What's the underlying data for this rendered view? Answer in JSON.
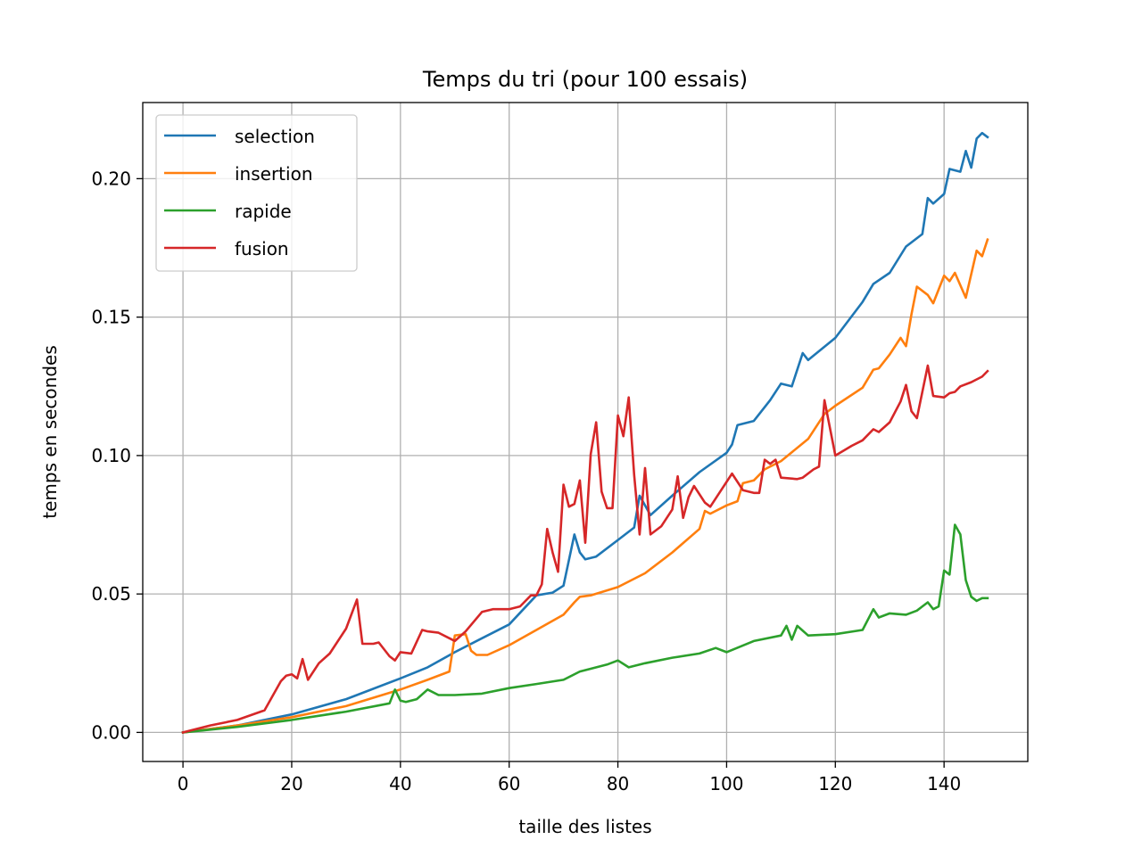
{
  "chart_data": {
    "type": "line",
    "title": "Temps du tri (pour 100 essais)",
    "xlabel": "taille des listes",
    "ylabel": "temps en secondes",
    "xlim": [
      -7.4,
      155.4
    ],
    "ylim": [
      -0.0105,
      0.2275
    ],
    "xticks": [
      0,
      20,
      40,
      60,
      80,
      100,
      120,
      140
    ],
    "xtick_labels": [
      "0",
      "20",
      "40",
      "60",
      "80",
      "100",
      "120",
      "140"
    ],
    "yticks": [
      0.0,
      0.05,
      0.1,
      0.15,
      0.2
    ],
    "ytick_labels": [
      "0.00",
      "0.05",
      "0.10",
      "0.15",
      "0.20"
    ],
    "grid": true,
    "legend_position": "top-left",
    "series": [
      {
        "name": "selection",
        "color": "#1f77b4",
        "x": [
          0,
          10,
          20,
          30,
          40,
          45,
          50,
          55,
          60,
          65,
          68,
          70,
          72,
          73,
          74,
          76,
          80,
          83,
          84,
          86,
          90,
          95,
          100,
          101,
          102,
          105,
          108,
          110,
          112,
          114,
          115,
          120,
          125,
          127,
          130,
          133,
          136,
          137,
          138,
          140,
          141,
          143,
          144,
          145,
          146,
          147,
          148
        ],
        "y": [
          0.0,
          0.0025,
          0.0065,
          0.012,
          0.0195,
          0.0235,
          0.029,
          0.034,
          0.039,
          0.0495,
          0.0505,
          0.053,
          0.0715,
          0.065,
          0.0625,
          0.0635,
          0.0695,
          0.074,
          0.0855,
          0.0785,
          0.0855,
          0.094,
          0.101,
          0.104,
          0.111,
          0.1125,
          0.12,
          0.126,
          0.125,
          0.137,
          0.1345,
          0.1425,
          0.1555,
          0.162,
          0.166,
          0.1755,
          0.18,
          0.193,
          0.191,
          0.1945,
          0.2035,
          0.2025,
          0.21,
          0.204,
          0.2145,
          0.2165,
          0.215
        ]
      },
      {
        "name": "insertion",
        "color": "#ff7f0e",
        "x": [
          0,
          10,
          20,
          30,
          40,
          45,
          49,
          50,
          52,
          53,
          54,
          56,
          60,
          65,
          70,
          72,
          73,
          75,
          80,
          85,
          90,
          95,
          96,
          97,
          100,
          102,
          103,
          105,
          107,
          110,
          115,
          118,
          120,
          125,
          127,
          128,
          130,
          132,
          133,
          134,
          135,
          137,
          138,
          140,
          141,
          142,
          144,
          146,
          147,
          148
        ],
        "y": [
          0.0,
          0.0025,
          0.0055,
          0.0095,
          0.0155,
          0.019,
          0.022,
          0.035,
          0.0355,
          0.0295,
          0.028,
          0.028,
          0.0315,
          0.037,
          0.0425,
          0.047,
          0.049,
          0.0495,
          0.0525,
          0.0575,
          0.065,
          0.0735,
          0.08,
          0.079,
          0.082,
          0.0835,
          0.09,
          0.091,
          0.095,
          0.098,
          0.106,
          0.115,
          0.118,
          0.1245,
          0.131,
          0.1315,
          0.1365,
          0.1425,
          0.1395,
          0.151,
          0.161,
          0.158,
          0.155,
          0.165,
          0.163,
          0.166,
          0.157,
          0.174,
          0.172,
          0.178
        ]
      },
      {
        "name": "rapide",
        "color": "#2ca02c",
        "x": [
          0,
          10,
          20,
          30,
          38,
          39,
          40,
          41,
          43,
          45,
          47,
          50,
          55,
          60,
          65,
          70,
          73,
          75,
          78,
          80,
          82,
          85,
          90,
          95,
          98,
          100,
          105,
          110,
          111,
          112,
          113,
          115,
          120,
          125,
          127,
          128,
          130,
          133,
          135,
          136,
          137,
          138,
          139,
          140,
          141,
          142,
          143,
          144,
          145,
          146,
          147,
          148
        ],
        "y": [
          0.0,
          0.002,
          0.0045,
          0.0075,
          0.0105,
          0.0155,
          0.0115,
          0.011,
          0.012,
          0.0155,
          0.0135,
          0.0135,
          0.014,
          0.016,
          0.0175,
          0.019,
          0.022,
          0.023,
          0.0245,
          0.026,
          0.0235,
          0.025,
          0.027,
          0.0285,
          0.0305,
          0.029,
          0.033,
          0.035,
          0.0385,
          0.0335,
          0.0385,
          0.035,
          0.0355,
          0.037,
          0.0445,
          0.0415,
          0.043,
          0.0425,
          0.044,
          0.0455,
          0.047,
          0.0445,
          0.0455,
          0.0585,
          0.057,
          0.075,
          0.0715,
          0.055,
          0.049,
          0.0475,
          0.0485,
          0.0485
        ]
      },
      {
        "name": "fusion",
        "color": "#d62728",
        "x": [
          0,
          5,
          10,
          15,
          18,
          19,
          20,
          21,
          22,
          23,
          25,
          27,
          30,
          32,
          33,
          35,
          36,
          38,
          39,
          40,
          42,
          44,
          45,
          47,
          49,
          50,
          52,
          55,
          57,
          60,
          62,
          64,
          65,
          66,
          67,
          68,
          69,
          70,
          71,
          72,
          73,
          74,
          75,
          76,
          77,
          78,
          79,
          80,
          81,
          82,
          83,
          84,
          85,
          86,
          88,
          90,
          91,
          92,
          93,
          94,
          96,
          97,
          99,
          101,
          103,
          105,
          106,
          107,
          108,
          109,
          110,
          113,
          114,
          116,
          117,
          118,
          120,
          123,
          125,
          127,
          128,
          130,
          132,
          133,
          134,
          135,
          137,
          138,
          140,
          141,
          142,
          143,
          145,
          147,
          148
        ],
        "y": [
          0.0,
          0.0025,
          0.0045,
          0.008,
          0.0185,
          0.0205,
          0.021,
          0.0195,
          0.0265,
          0.019,
          0.025,
          0.0285,
          0.0375,
          0.048,
          0.032,
          0.032,
          0.0325,
          0.0275,
          0.026,
          0.029,
          0.0285,
          0.037,
          0.0365,
          0.036,
          0.034,
          0.033,
          0.0365,
          0.0435,
          0.0445,
          0.0445,
          0.0455,
          0.0495,
          0.0495,
          0.0535,
          0.0735,
          0.065,
          0.058,
          0.0895,
          0.0815,
          0.0825,
          0.091,
          0.0685,
          0.1005,
          0.112,
          0.087,
          0.081,
          0.081,
          0.1145,
          0.107,
          0.121,
          0.093,
          0.0715,
          0.0955,
          0.0715,
          0.0745,
          0.0805,
          0.0925,
          0.0775,
          0.085,
          0.089,
          0.083,
          0.0815,
          0.0875,
          0.0935,
          0.0875,
          0.0865,
          0.0865,
          0.0985,
          0.097,
          0.0985,
          0.092,
          0.0915,
          0.092,
          0.095,
          0.096,
          0.12,
          0.1,
          0.1035,
          0.1055,
          0.1095,
          0.1085,
          0.112,
          0.1195,
          0.1255,
          0.116,
          0.1135,
          0.1325,
          0.1215,
          0.121,
          0.1225,
          0.123,
          0.125,
          0.1265,
          0.1285,
          0.1305
        ]
      }
    ]
  }
}
